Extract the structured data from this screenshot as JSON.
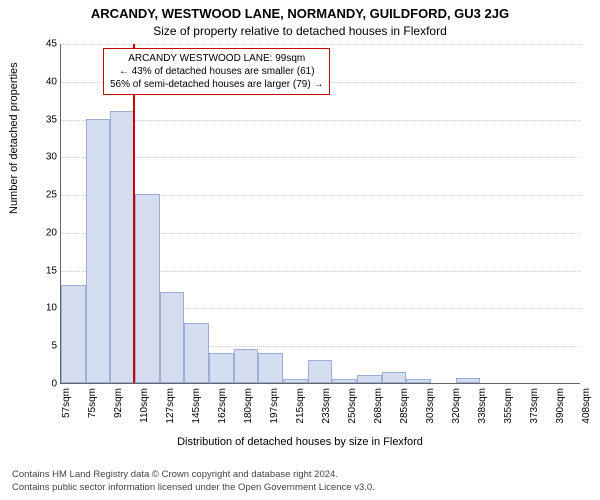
{
  "titles": {
    "main": "ARCANDY, WESTWOOD LANE, NORMANDY, GUILDFORD, GU3 2JG",
    "sub": "Size of property relative to detached houses in Flexford"
  },
  "axes": {
    "y_title": "Number of detached properties",
    "x_title": "Distribution of detached houses by size in Flexford",
    "ylim": [
      0,
      45
    ],
    "ytick_step": 5,
    "ylabels": [
      "0",
      "5",
      "10",
      "15",
      "20",
      "25",
      "30",
      "35",
      "40",
      "45"
    ],
    "xlabels": [
      "57sqm",
      "75sqm",
      "92sqm",
      "110sqm",
      "127sqm",
      "145sqm",
      "162sqm",
      "180sqm",
      "197sqm",
      "215sqm",
      "233sqm",
      "250sqm",
      "268sqm",
      "285sqm",
      "303sqm",
      "320sqm",
      "338sqm",
      "355sqm",
      "373sqm",
      "390sqm",
      "408sqm"
    ],
    "xrange": [
      48,
      417
    ]
  },
  "chart": {
    "type": "histogram",
    "bar_fill": "#d5ddf0",
    "bar_border": "#9aaed6",
    "grid_color": "#cfcfcf",
    "background": "#ffffff",
    "bin_width": 17.5,
    "bins_start": 48,
    "values": [
      13,
      35,
      36,
      25,
      12,
      8,
      4,
      4.5,
      4,
      0.5,
      3,
      0.5,
      1,
      1.5,
      0.5,
      0,
      0.6,
      0,
      0,
      0,
      0
    ]
  },
  "marker": {
    "x_value": 99,
    "line_color": "#cc0000",
    "annotation": {
      "line1": "ARCANDY WESTWOOD LANE: 99sqm",
      "line2": "← 43% of detached houses are smaller (61)",
      "line3": "56% of semi-detached houses are larger (79) →",
      "border_color": "#cc0000"
    }
  },
  "footer": {
    "line1": "Contains HM Land Registry data © Crown copyright and database right 2024.",
    "line2": "Contains public sector information licensed under the Open Government Licence v3.0."
  }
}
